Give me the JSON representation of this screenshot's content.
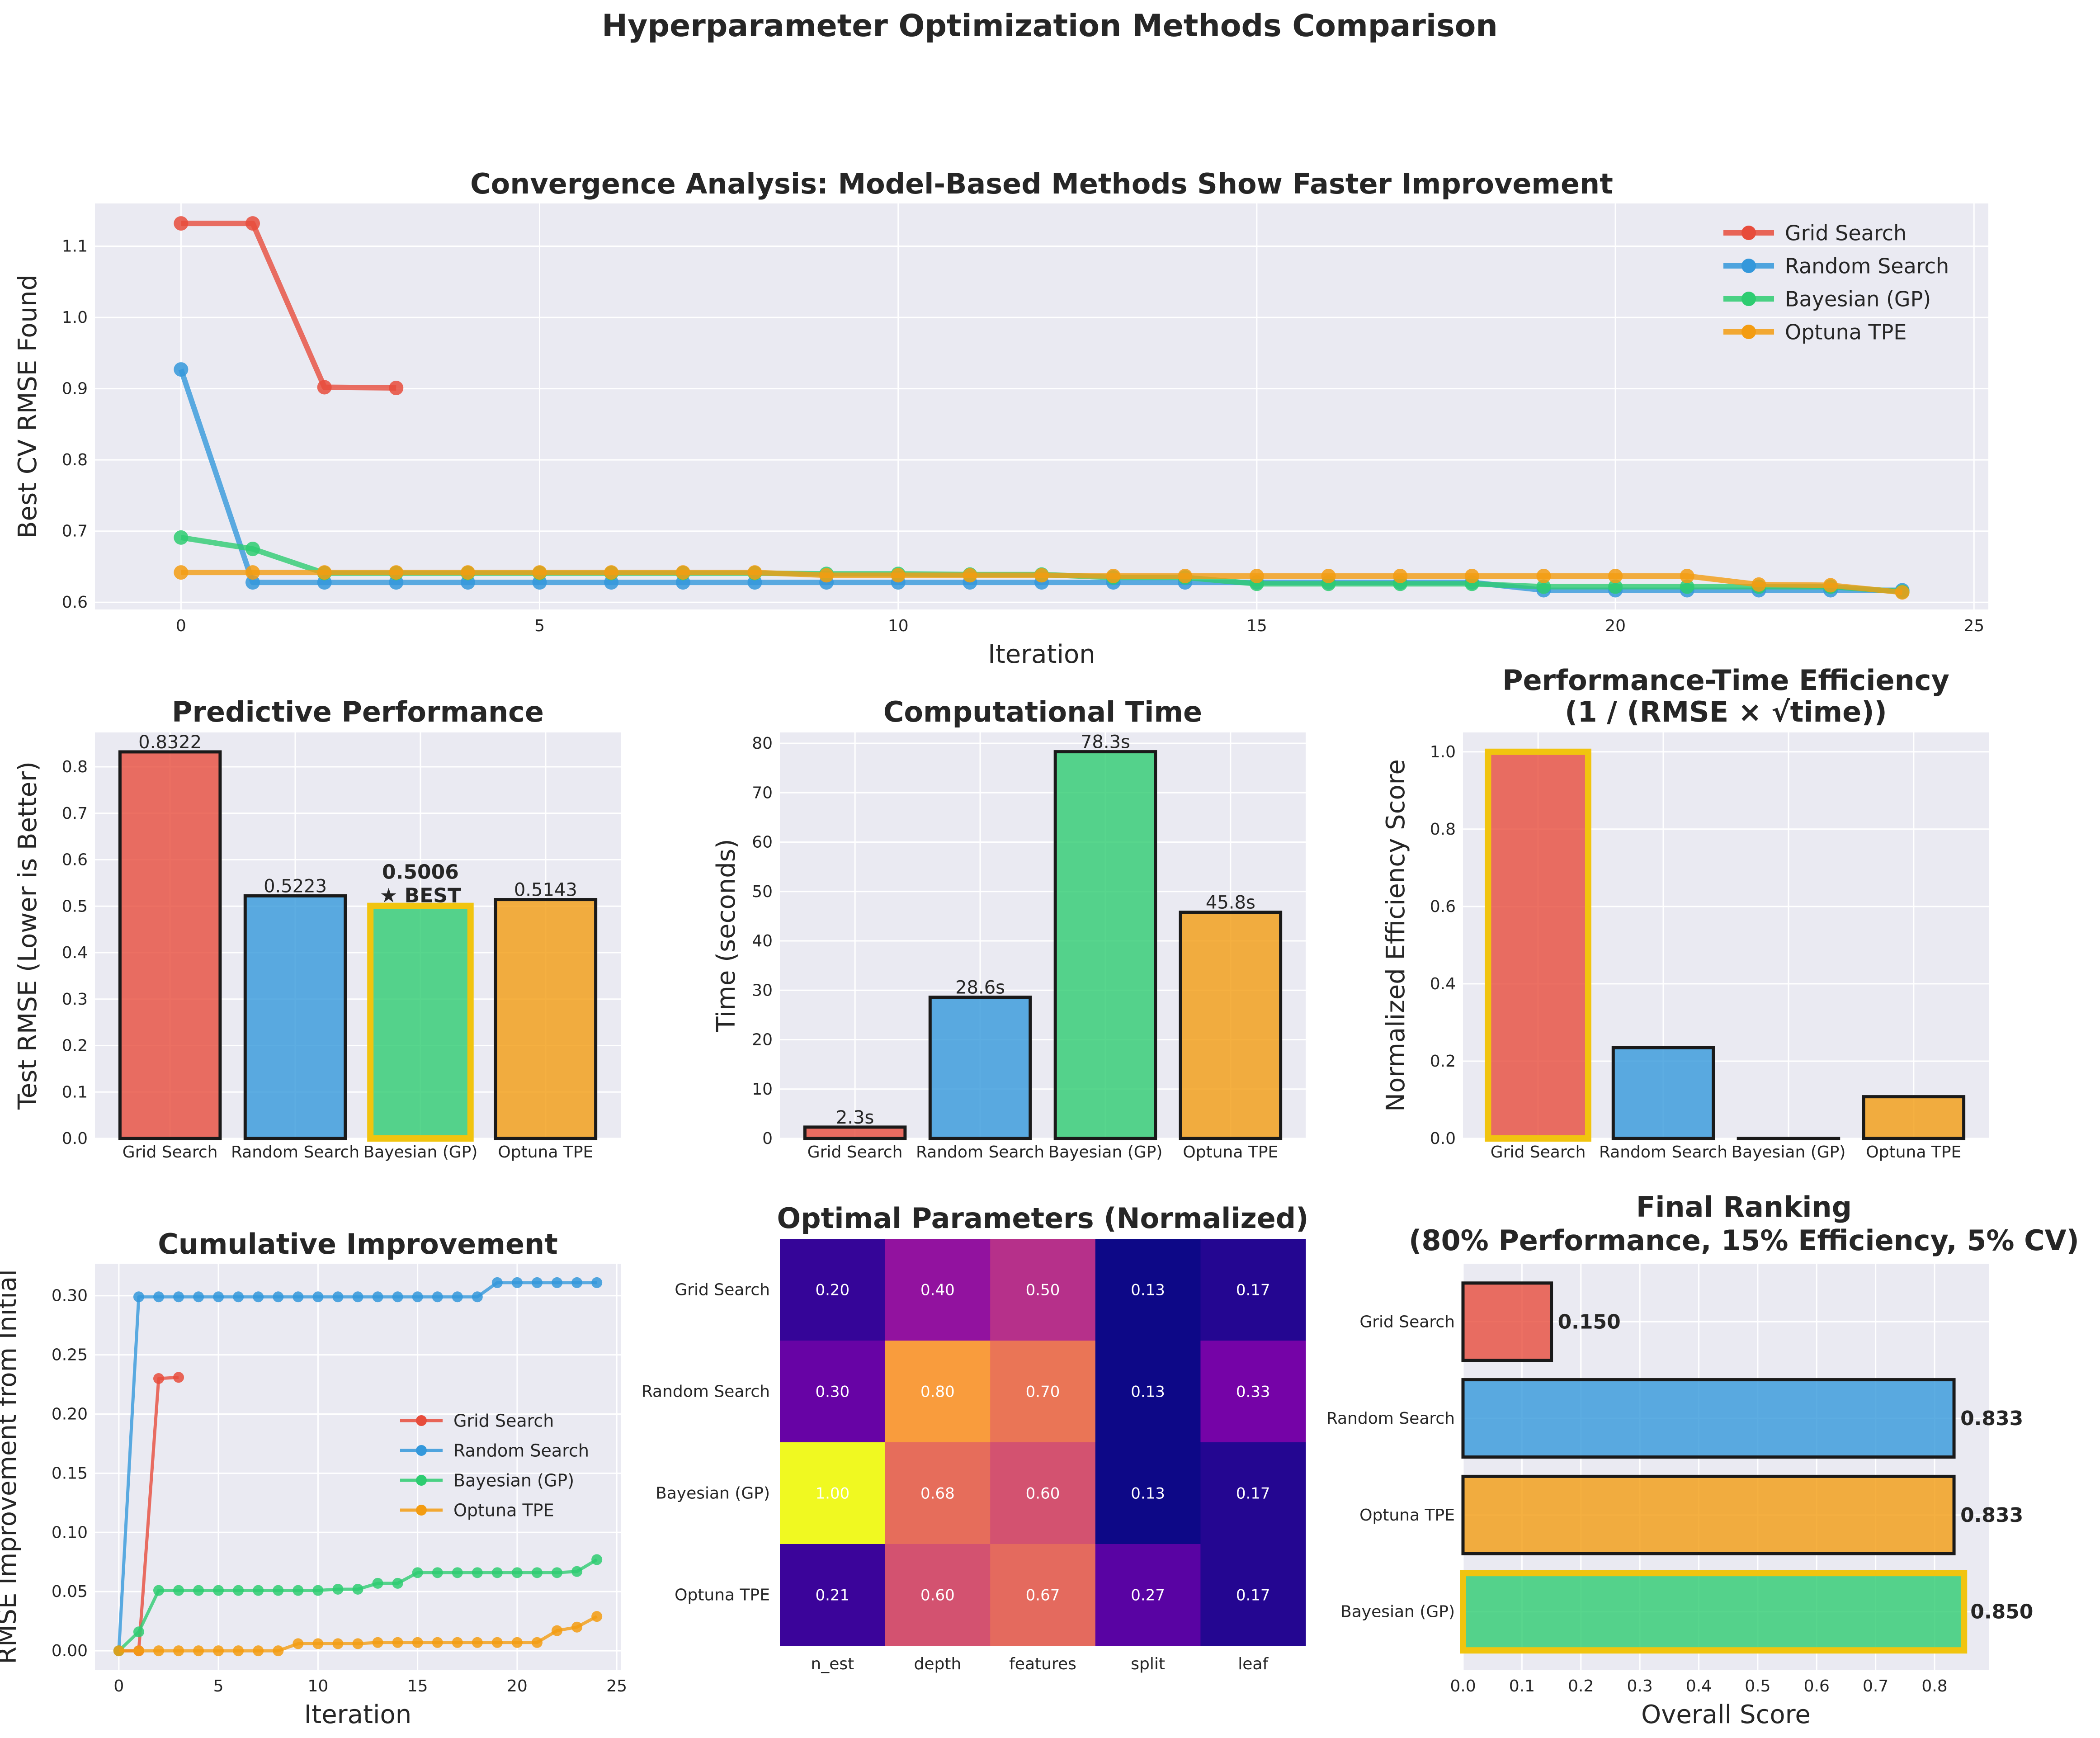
{
  "suptitle": "Hyperparameter Optimization Methods Comparison",
  "colors": {
    "grid_search": "#e74c3c",
    "random_search": "#3498db",
    "bayesian": "#2ecc71",
    "optuna": "#f39c12",
    "highlight": "#f1c40f",
    "panel_bg": "#eaeaf2"
  },
  "chart_data": [
    {
      "id": "convergence",
      "type": "line",
      "title": "Convergence Analysis: Model-Based Methods Show Faster Improvement",
      "xlabel": "Iteration",
      "ylabel": "Best CV RMSE Found",
      "xlim": [
        -1.2,
        25.2
      ],
      "ylim": [
        0.59,
        1.16
      ],
      "xticks": [
        0,
        5,
        10,
        15,
        20,
        25
      ],
      "yticks": [
        0.6,
        0.7,
        0.8,
        0.9,
        1.0,
        1.1
      ],
      "grid": true,
      "legend": "top-right",
      "series": [
        {
          "name": "Grid Search",
          "color": "#e74c3c",
          "y": [
            1.132,
            1.132,
            0.902,
            0.901
          ]
        },
        {
          "name": "Random Search",
          "color": "#3498db",
          "y": [
            0.927,
            0.628,
            0.628,
            0.628,
            0.628,
            0.628,
            0.628,
            0.628,
            0.628,
            0.628,
            0.628,
            0.628,
            0.628,
            0.628,
            0.628,
            0.628,
            0.628,
            0.628,
            0.628,
            0.617,
            0.617,
            0.617,
            0.617,
            0.617,
            0.617
          ]
        },
        {
          "name": "Bayesian (GP)",
          "color": "#2ecc71",
          "y": [
            0.691,
            0.675,
            0.641,
            0.641,
            0.641,
            0.641,
            0.641,
            0.641,
            0.641,
            0.64,
            0.64,
            0.639,
            0.639,
            0.635,
            0.635,
            0.626,
            0.626,
            0.626,
            0.626,
            0.622,
            0.622,
            0.622,
            0.622,
            0.622,
            0.615
          ]
        },
        {
          "name": "Optuna TPE",
          "color": "#f39c12",
          "y": [
            0.642,
            0.642,
            0.642,
            0.642,
            0.642,
            0.642,
            0.642,
            0.642,
            0.642,
            0.638,
            0.638,
            0.638,
            0.638,
            0.637,
            0.637,
            0.637,
            0.637,
            0.637,
            0.637,
            0.637,
            0.637,
            0.637,
            0.625,
            0.624,
            0.614
          ]
        }
      ]
    },
    {
      "id": "performance",
      "type": "bar",
      "title": "Predictive Performance",
      "ylabel": "Test RMSE (Lower is Better)",
      "categories": [
        "Grid Search",
        "Random Search",
        "Bayesian (GP)",
        "Optuna TPE"
      ],
      "values": [
        0.8322,
        0.5223,
        0.5006,
        0.5143
      ],
      "labels": [
        "0.8322",
        "0.5223",
        "0.5006\n★ BEST",
        "0.5143"
      ],
      "highlight_index": 2,
      "ylim": [
        0,
        0.874
      ],
      "yticks": [
        0.0,
        0.1,
        0.2,
        0.3,
        0.4,
        0.5,
        0.6,
        0.7,
        0.8
      ]
    },
    {
      "id": "time",
      "type": "bar",
      "title": "Computational Time",
      "ylabel": "Time (seconds)",
      "categories": [
        "Grid Search",
        "Random Search",
        "Bayesian (GP)",
        "Optuna TPE"
      ],
      "values": [
        2.3,
        28.6,
        78.3,
        45.8
      ],
      "labels": [
        "2.3s",
        "28.6s",
        "78.3s",
        "45.8s"
      ],
      "ylim": [
        0,
        82.2
      ],
      "yticks": [
        0,
        10,
        20,
        30,
        40,
        50,
        60,
        70,
        80
      ]
    },
    {
      "id": "efficiency",
      "type": "bar",
      "title": "Performance-Time Efficiency\n(1 / (RMSE × √time))",
      "ylabel": "Normalized Efficiency Score",
      "categories": [
        "Grid Search",
        "Random Search",
        "Bayesian (GP)",
        "Optuna TPE"
      ],
      "values": [
        1.0,
        0.235,
        0.0,
        0.108
      ],
      "highlight_index": 0,
      "ylim": [
        0,
        1.05
      ],
      "yticks": [
        0.0,
        0.2,
        0.4,
        0.6,
        0.8,
        1.0
      ]
    },
    {
      "id": "cumulative",
      "type": "line",
      "title": "Cumulative Improvement",
      "xlabel": "Iteration",
      "ylabel": "RMSE Improvement from Initial",
      "xlim": [
        -1.2,
        25.2
      ],
      "ylim": [
        -0.016,
        0.327
      ],
      "xticks": [
        0,
        5,
        10,
        15,
        20,
        25
      ],
      "yticks": [
        0.0,
        0.05,
        0.1,
        0.15,
        0.2,
        0.25,
        0.3
      ],
      "legend": "center-right",
      "series": [
        {
          "name": "Grid Search",
          "color": "#e74c3c",
          "y": [
            0,
            0,
            0.23,
            0.231
          ]
        },
        {
          "name": "Random Search",
          "color": "#3498db",
          "y": [
            0,
            0.299,
            0.299,
            0.299,
            0.299,
            0.299,
            0.299,
            0.299,
            0.299,
            0.299,
            0.299,
            0.299,
            0.299,
            0.299,
            0.299,
            0.299,
            0.299,
            0.299,
            0.299,
            0.311,
            0.311,
            0.311,
            0.311,
            0.311,
            0.311
          ]
        },
        {
          "name": "Bayesian (GP)",
          "color": "#2ecc71",
          "y": [
            0,
            0.016,
            0.051,
            0.051,
            0.051,
            0.051,
            0.051,
            0.051,
            0.051,
            0.051,
            0.051,
            0.052,
            0.052,
            0.057,
            0.057,
            0.066,
            0.066,
            0.066,
            0.066,
            0.066,
            0.066,
            0.066,
            0.066,
            0.067,
            0.077
          ]
        },
        {
          "name": "Optuna TPE",
          "color": "#f39c12",
          "y": [
            0,
            0,
            0,
            0,
            0,
            0,
            0,
            0,
            0,
            0.006,
            0.006,
            0.006,
            0.006,
            0.007,
            0.007,
            0.007,
            0.007,
            0.007,
            0.007,
            0.007,
            0.007,
            0.007,
            0.017,
            0.02,
            0.029
          ]
        }
      ]
    },
    {
      "id": "params",
      "type": "heatmap",
      "title": "Optimal Parameters (Normalized)",
      "rows": [
        "Grid Search",
        "Random Search",
        "Bayesian (GP)",
        "Optuna TPE"
      ],
      "columns": [
        "n_est",
        "depth",
        "features",
        "split",
        "leaf"
      ],
      "values": [
        [
          0.2,
          0.4,
          0.5,
          0.13,
          0.17
        ],
        [
          0.3,
          0.8,
          0.7,
          0.13,
          0.33
        ],
        [
          1.0,
          0.68,
          0.6,
          0.13,
          0.17
        ],
        [
          0.21,
          0.6,
          0.67,
          0.27,
          0.17
        ]
      ],
      "colormap": "plasma",
      "vmin": 0.13,
      "vmax": 1.0
    },
    {
      "id": "ranking",
      "type": "bar",
      "orientation": "horizontal",
      "title": "Final Ranking\n(80% Performance, 15% Efficiency, 5% CV)",
      "xlabel": "Overall Score",
      "categories": [
        "Grid Search",
        "Random Search",
        "Optuna TPE",
        "Bayesian (GP)"
      ],
      "values": [
        0.15,
        0.833,
        0.833,
        0.85
      ],
      "labels": [
        "0.150",
        "0.833",
        "0.833",
        "0.850"
      ],
      "colors": [
        "#e74c3c",
        "#3498db",
        "#f39c12",
        "#2ecc71"
      ],
      "highlight_index": 3,
      "xlim": [
        0,
        0.892
      ],
      "xticks": [
        0.0,
        0.1,
        0.2,
        0.3,
        0.4,
        0.5,
        0.6,
        0.7,
        0.8
      ]
    }
  ]
}
